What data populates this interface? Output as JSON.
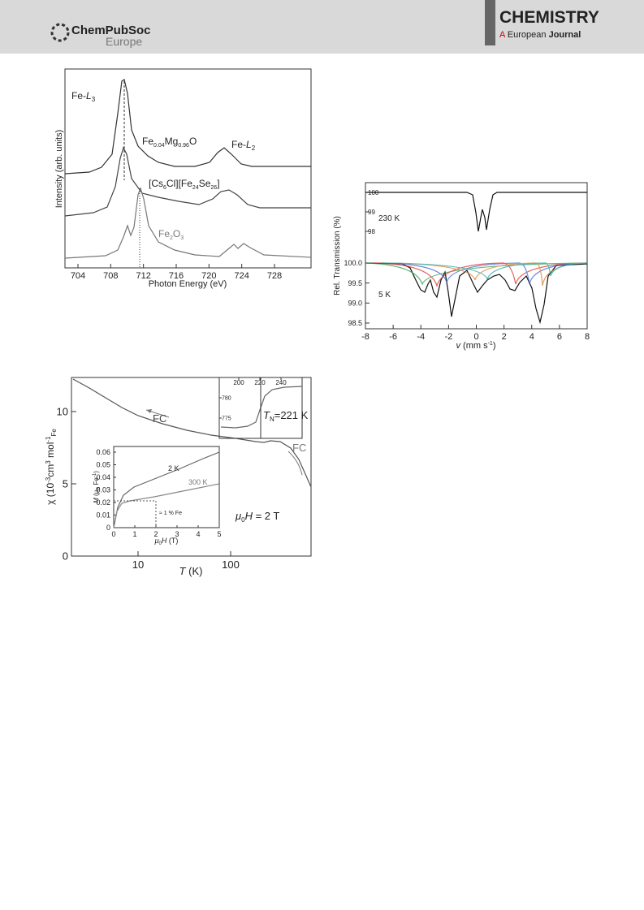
{
  "header": {
    "publisher": "ChemPubSoc",
    "publisher_sub": "Europe",
    "journal": "CHEMISTRY",
    "journal_sub_a": "A",
    "journal_sub_b": "European",
    "journal_sub_c": "Journal"
  },
  "figure_xas": {
    "y_label": "Intensity (arb. units)",
    "x_label": "Photon Energy (eV)",
    "xticks": [
      704,
      708,
      712,
      716,
      720,
      724,
      728
    ],
    "label_l3": [
      "Fe-",
      "L",
      "3"
    ],
    "label_l2": [
      "Fe-",
      "L",
      "2"
    ],
    "label_mgo": [
      "Fe",
      "0.04",
      "Mg",
      "0.96",
      "O"
    ],
    "label_cluster": [
      "[Cs",
      "6",
      "Cl][Fe",
      "24",
      "Se",
      "26",
      "]"
    ],
    "label_fe2o3": [
      "Fe",
      "2",
      "O",
      "3"
    ]
  },
  "figure_mossbauer": {
    "y_label": "Rel. Transmission (%)",
    "x_label": [
      "v",
      " (mm s",
      "-1",
      ")"
    ],
    "xticks": [
      -8,
      -6,
      -4,
      -2,
      0,
      2,
      4,
      6,
      8
    ],
    "top_yticks": [
      100,
      99,
      98
    ],
    "bottom_yticks": [
      {
        "value": 100,
        "label": "100.0"
      },
      {
        "value": 99.5,
        "label": "99.5"
      },
      {
        "value": 99,
        "label": "99.0"
      },
      {
        "value": 98.5,
        "label": "98.5"
      }
    ],
    "top_label": "230 K",
    "bottom_label": "5 K"
  },
  "figure_chi": {
    "y_label": [
      "χ (10",
      "-3",
      "cm",
      "3",
      " mol",
      "-1",
      "Fe",
      ""
    ],
    "x_label": [
      "T",
      " (K)"
    ],
    "xticks": [
      10,
      100
    ],
    "yticks": [
      0,
      5,
      10
    ],
    "fc_low": "FC",
    "fc_high": "FC",
    "tn_label": [
      "T",
      "N",
      "=221 K"
    ],
    "field_label": [
      "μ",
      "0",
      "H",
      " = 2 T"
    ],
    "inset_m": {
      "xticks": [
        0,
        1,
        2,
        3,
        4,
        5
      ],
      "yticks": [
        0,
        0.01,
        0.02,
        0.03,
        0.04,
        0.05,
        0.06
      ],
      "x_label": [
        "μ",
        "0",
        "H",
        " (T)"
      ],
      "y_label": [
        "M",
        " (μ",
        "B",
        " Fe",
        "-1",
        ")"
      ],
      "label_2k": "2 K",
      "label_300k": "300 K",
      "label_fe": "≈ 1 % Fe"
    },
    "inset_t": {
      "xticks": [
        200,
        220,
        240
      ],
      "yticks": [
        780,
        775
      ]
    }
  }
}
